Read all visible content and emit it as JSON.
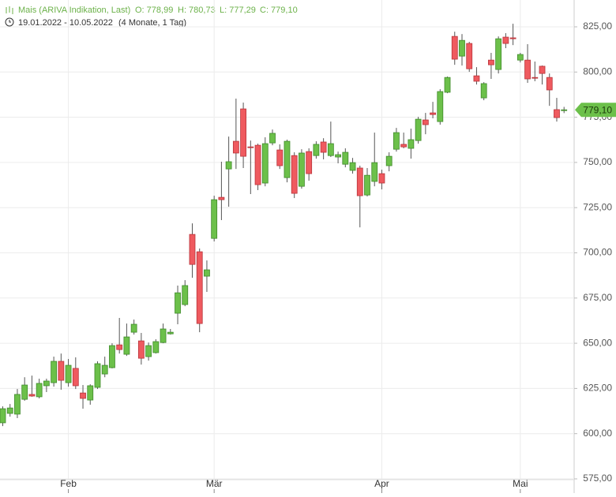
{
  "chart_data": {
    "type": "candlestick",
    "header": {
      "name": "Mais (ARIVA Indikation, Last)",
      "o": "O: 778,99",
      "h": "H: 780,73",
      "l": "L: 777,29",
      "c": "C: 779,10"
    },
    "range": {
      "dates": "19.01.2022 - 10.05.2022",
      "span": "(4 Monate, 1 Tag)"
    },
    "last_label": "779,10",
    "categories": [
      null,
      null,
      null,
      null,
      null,
      null,
      null,
      null,
      null,
      "Feb",
      null,
      null,
      null,
      null,
      null,
      null,
      null,
      null,
      null,
      null,
      null,
      null,
      null,
      null,
      null,
      null,
      null,
      null,
      null,
      "Mär",
      null,
      null,
      null,
      null,
      null,
      null,
      null,
      null,
      null,
      null,
      null,
      null,
      null,
      null,
      null,
      null,
      null,
      null,
      null,
      null,
      null,
      null,
      "Apr",
      null,
      null,
      null,
      null,
      null,
      null,
      null,
      null,
      null,
      null,
      null,
      null,
      null,
      null,
      null,
      null,
      null,
      null,
      "Mai",
      null,
      null,
      null,
      null,
      null,
      null
    ],
    "open": [
      606.0,
      611.2,
      610.8,
      619.0,
      621.7,
      620.4,
      626.5,
      628.2,
      640.0,
      628.2,
      636.1,
      622.5,
      618.6,
      625.6,
      633.0,
      636.5,
      649.1,
      643.9,
      656.1,
      651.3,
      642.6,
      644.8,
      650.4,
      655.2,
      666.6,
      671.4,
      710.2,
      700.6,
      687.1,
      708.0,
      730.7,
      746.4,
      761.7,
      779.6,
      758.6,
      759.5,
      738.6,
      760.8,
      756.9,
      741.6,
      753.8,
      736.8,
      756.0,
      753.8,
      761.3,
      753.8,
      753.0,
      749.0,
      745.6,
      746.9,
      732.0,
      739.5,
      743.8,
      748.2,
      757.3,
      760.0,
      757.8,
      762.1,
      773.5,
      777.4,
      772.6,
      788.8,
      819.7,
      808.8,
      815.8,
      797.9,
      785.7,
      806.6,
      801.4,
      819.3,
      818.9,
      806.6,
      806.6,
      797.0,
      803.2,
      797.0,
      779.2,
      778.99
    ],
    "high": [
      615.1,
      616.4,
      624.7,
      631.2,
      632.1,
      630.4,
      630.4,
      642.6,
      644.3,
      641.3,
      642.2,
      626.9,
      627.3,
      640.0,
      642.6,
      650.0,
      664.0,
      660.9,
      663.1,
      655.7,
      650.4,
      652.2,
      660.9,
      657.9,
      681.9,
      684.9,
      716.3,
      702.4,
      695.8,
      731.6,
      750.4,
      764.3,
      785.3,
      783.1,
      762.1,
      760.4,
      763.9,
      768.2,
      760.0,
      762.6,
      755.6,
      757.3,
      757.8,
      761.7,
      763.4,
      772.6,
      756.0,
      757.8,
      752.5,
      748.2,
      746.9,
      766.5,
      746.0,
      755.6,
      769.1,
      766.5,
      768.7,
      775.2,
      777.4,
      783.5,
      790.5,
      797.5,
      822.3,
      821.0,
      816.7,
      802.7,
      794.4,
      810.6,
      819.7,
      821.5,
      826.7,
      810.6,
      815.4,
      805.8,
      803.6,
      799.2,
      785.7,
      780.73
    ],
    "low": [
      604.2,
      609.4,
      608.6,
      618.2,
      620.4,
      619.5,
      623.0,
      626.0,
      624.3,
      626.0,
      624.7,
      613.8,
      616.0,
      624.7,
      631.2,
      636.1,
      644.3,
      643.0,
      654.8,
      638.2,
      640.4,
      644.3,
      650.0,
      654.8,
      660.5,
      670.5,
      686.2,
      656.1,
      678.4,
      706.3,
      718.1,
      725.5,
      746.4,
      746.9,
      732.5,
      734.7,
      736.8,
      759.5,
      746.4,
      739.0,
      730.3,
      735.5,
      739.9,
      752.1,
      751.7,
      753.0,
      749.5,
      747.3,
      743.8,
      714.1,
      731.2,
      736.8,
      735.1,
      745.1,
      756.0,
      757.8,
      752.1,
      760.4,
      765.6,
      774.4,
      770.9,
      788.3,
      804.0,
      803.6,
      800.1,
      793.1,
      784.4,
      796.2,
      799.2,
      813.2,
      814.9,
      805.3,
      794.0,
      794.9,
      793.1,
      781.3,
      772.6,
      777.29
    ],
    "close": [
      613.8,
      614.2,
      621.7,
      626.9,
      620.8,
      627.8,
      629.1,
      640.0,
      629.5,
      637.8,
      626.5,
      619.5,
      626.5,
      638.7,
      637.8,
      648.7,
      646.5,
      653.5,
      660.5,
      641.7,
      648.7,
      650.9,
      657.9,
      656.1,
      677.9,
      681.9,
      693.6,
      660.9,
      690.6,
      729.4,
      729.4,
      750.4,
      755.2,
      753.4,
      758.2,
      737.7,
      760.4,
      766.1,
      748.2,
      761.7,
      732.9,
      755.2,
      743.8,
      760.0,
      755.6,
      760.4,
      754.3,
      755.6,
      749.9,
      731.6,
      742.9,
      749.9,
      738.6,
      753.4,
      766.5,
      758.6,
      762.6,
      773.9,
      770.9,
      776.5,
      789.2,
      797.0,
      807.1,
      817.5,
      801.8,
      794.9,
      793.6,
      804.0,
      818.4,
      815.8,
      818.4,
      809.7,
      796.2,
      796.6,
      799.2,
      790.1,
      774.8,
      779.1
    ],
    "up_color": "#6cc04a",
    "down_color": "#ef5a5f",
    "ylim": [
      575,
      825
    ],
    "yticks": [
      {
        "value": 575,
        "label": "575,00"
      },
      {
        "value": 600,
        "label": "600,00"
      },
      {
        "value": 625,
        "label": "625,00"
      },
      {
        "value": 650,
        "label": "650,00"
      },
      {
        "value": 675,
        "label": "675,00"
      },
      {
        "value": 700,
        "label": "700,00"
      },
      {
        "value": 725,
        "label": "725,00"
      },
      {
        "value": 750,
        "label": "750,00"
      },
      {
        "value": 775,
        "label": "775,00"
      },
      {
        "value": 800,
        "label": "800,00"
      },
      {
        "value": 825,
        "label": "825,00"
      }
    ],
    "grid": true
  }
}
